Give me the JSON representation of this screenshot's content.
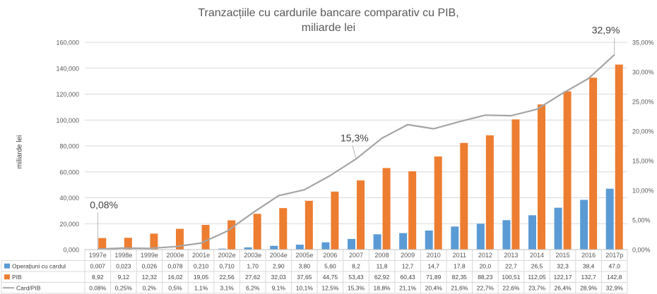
{
  "chart_data": {
    "type": "bar",
    "title": "Tranzacțiile cu cardurile bancare comparativ cu PIB,",
    "subtitle": "miliarde lei",
    "ylabel": "miliarde lei",
    "categories": [
      "1997e",
      "1998e",
      "1999e",
      "2000e",
      "2001e",
      "2002e",
      "2003e",
      "2004e",
      "2005e",
      "2006",
      "2007",
      "2008",
      "2009",
      "2010",
      "2011",
      "2012",
      "2013",
      "2014",
      "2015",
      "2016",
      "2017p"
    ],
    "ylim": [
      0,
      160000
    ],
    "y_ticks": [
      "0,000",
      "20,000",
      "40,000",
      "60,000",
      "80,000",
      "100,000",
      "120,000",
      "140,000",
      "160,000"
    ],
    "y2lim": [
      0,
      35
    ],
    "y2_ticks": [
      "0,00%",
      "5,00%",
      "10,00%",
      "15,00%",
      "20,00%",
      "25,00%",
      "30,00%",
      "35,00%"
    ],
    "grid": true,
    "legend": "table-below",
    "series": [
      {
        "name": "Operațiuni cu cardul",
        "color": "#5B9BD5",
        "kind": "bar",
        "values": [
          0.007,
          0.023,
          0.026,
          0.078,
          0.21,
          0.71,
          1.7,
          2.9,
          3.8,
          5.6,
          8.2,
          11.8,
          12.7,
          14.7,
          17.8,
          20.0,
          22.7,
          26.5,
          32.3,
          38.4,
          47.0
        ],
        "labels": [
          "0,007",
          "0,023",
          "0,026",
          "0,078",
          "0,210",
          "0,710",
          "1,70",
          "2,90",
          "3,80",
          "5,60",
          "8,2",
          "11,8",
          "12,7",
          "14,7",
          "17,8",
          "20,0",
          "22,7",
          "26,5",
          "32,3",
          "38,4",
          "47,0"
        ]
      },
      {
        "name": "PIB",
        "color": "#ED7D31",
        "kind": "bar",
        "values": [
          8.92,
          9.12,
          12.32,
          16.02,
          19.05,
          22.56,
          27.62,
          32.03,
          37.65,
          44.75,
          53.43,
          62.92,
          60.43,
          71.89,
          82.35,
          88.23,
          100.51,
          112.05,
          122.17,
          132.7,
          142.8
        ],
        "labels": [
          "8,92",
          "9,12",
          "12,32",
          "16,02",
          "19,05",
          "22,56",
          "27,62",
          "32,03",
          "37,65",
          "44,75",
          "53,43",
          "62,92",
          "60,43",
          "71,89",
          "82,35",
          "88,23",
          "100,51",
          "112,05",
          "122,17",
          "132,7",
          "142,8"
        ]
      },
      {
        "name": "Card/PIB",
        "color": "#A5A5A5",
        "kind": "line",
        "axis": "secondary",
        "values": [
          0.08,
          0.25,
          0.2,
          0.5,
          1.1,
          3.1,
          6.2,
          9.1,
          10.1,
          12.5,
          15.3,
          18.8,
          21.1,
          20.4,
          21.6,
          22.7,
          22.6,
          23.7,
          26.4,
          28.9,
          32.9
        ],
        "labels": [
          "0,08%",
          "0,25%",
          "0,2%",
          "0,5%",
          "1,1%",
          "3,1%",
          "6,2%",
          "9,1%",
          "10,1%",
          "12,5%",
          "15,3%",
          "18,8%",
          "21,1%",
          "20,4%",
          "21,6%",
          "22,7%",
          "22,6%",
          "23,7%",
          "26,4%",
          "28,9%",
          "32,9%"
        ]
      }
    ],
    "annotations": [
      {
        "text": "0,08%",
        "index": 0
      },
      {
        "text": "15,3%",
        "index": 10
      },
      {
        "text": "32,9%",
        "index": 20
      }
    ]
  }
}
